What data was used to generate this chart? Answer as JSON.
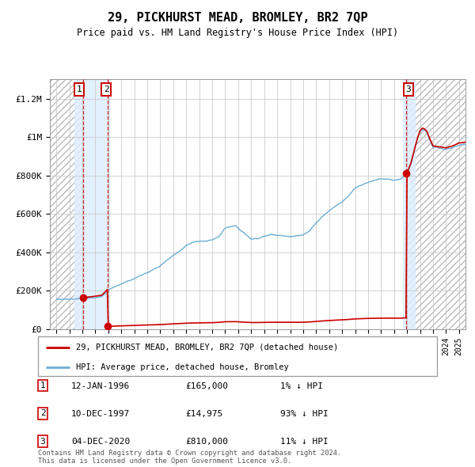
{
  "title": "29, PICKHURST MEAD, BROMLEY, BR2 7QP",
  "subtitle": "Price paid vs. HM Land Registry's House Price Index (HPI)",
  "sale_dates": [
    1996.04,
    1997.94,
    2020.92
  ],
  "sale_prices": [
    165000,
    14975,
    810000
  ],
  "legend_sale_label": "29, PICKHURST MEAD, BROMLEY, BR2 7QP (detached house)",
  "legend_hpi_label": "HPI: Average price, detached house, Bromley",
  "table_entries": [
    {
      "num": "1",
      "date": "12-JAN-1996",
      "price": "£165,000",
      "pct": "1% ↓ HPI"
    },
    {
      "num": "2",
      "date": "10-DEC-1997",
      "price": "£14,975",
      "pct": "93% ↓ HPI"
    },
    {
      "num": "3",
      "date": "04-DEC-2020",
      "price": "£810,000",
      "pct": "11% ↓ HPI"
    }
  ],
  "footer": "Contains HM Land Registry data © Crown copyright and database right 2024.\nThis data is licensed under the Open Government Licence v3.0.",
  "ylim": [
    0,
    1300000
  ],
  "xlim_start": 1993.5,
  "xlim_end": 2025.5,
  "yticks": [
    0,
    200000,
    400000,
    600000,
    800000,
    1000000,
    1200000
  ],
  "ytick_labels": [
    "£0",
    "£200K",
    "£400K",
    "£600K",
    "£800K",
    "£1M",
    "£1.2M"
  ],
  "hpi_color": "#6baed6",
  "sale_color": "#cc0000",
  "highlight_color": "#ddeeff",
  "hpi_anchors": [
    [
      1994.0,
      155000
    ],
    [
      1994.5,
      157000
    ],
    [
      1995.0,
      158000
    ],
    [
      1995.5,
      160000
    ],
    [
      1996.0,
      163000
    ],
    [
      1996.5,
      166000
    ],
    [
      1997.0,
      170000
    ],
    [
      1997.5,
      175000
    ],
    [
      1998.0,
      210000
    ],
    [
      1998.5,
      225000
    ],
    [
      1999.0,
      240000
    ],
    [
      1999.5,
      258000
    ],
    [
      2000.0,
      270000
    ],
    [
      2000.5,
      285000
    ],
    [
      2001.0,
      300000
    ],
    [
      2001.5,
      315000
    ],
    [
      2002.0,
      330000
    ],
    [
      2002.5,
      360000
    ],
    [
      2003.0,
      385000
    ],
    [
      2003.5,
      405000
    ],
    [
      2004.0,
      435000
    ],
    [
      2004.5,
      450000
    ],
    [
      2005.0,
      455000
    ],
    [
      2005.5,
      460000
    ],
    [
      2006.0,
      470000
    ],
    [
      2006.5,
      490000
    ],
    [
      2007.0,
      535000
    ],
    [
      2007.5,
      540000
    ],
    [
      2007.8,
      545000
    ],
    [
      2008.0,
      530000
    ],
    [
      2008.5,
      505000
    ],
    [
      2009.0,
      475000
    ],
    [
      2009.5,
      478000
    ],
    [
      2010.0,
      490000
    ],
    [
      2010.5,
      500000
    ],
    [
      2011.0,
      498000
    ],
    [
      2011.5,
      495000
    ],
    [
      2012.0,
      492000
    ],
    [
      2012.5,
      495000
    ],
    [
      2013.0,
      500000
    ],
    [
      2013.5,
      520000
    ],
    [
      2014.0,
      560000
    ],
    [
      2014.5,
      595000
    ],
    [
      2015.0,
      625000
    ],
    [
      2015.5,
      650000
    ],
    [
      2016.0,
      670000
    ],
    [
      2016.5,
      700000
    ],
    [
      2017.0,
      740000
    ],
    [
      2017.5,
      760000
    ],
    [
      2018.0,
      775000
    ],
    [
      2018.5,
      785000
    ],
    [
      2019.0,
      790000
    ],
    [
      2019.5,
      788000
    ],
    [
      2020.0,
      785000
    ],
    [
      2020.5,
      790000
    ],
    [
      2021.0,
      820000
    ],
    [
      2021.3,
      870000
    ],
    [
      2021.6,
      950000
    ],
    [
      2021.8,
      1000000
    ],
    [
      2022.0,
      1040000
    ],
    [
      2022.2,
      1055000
    ],
    [
      2022.5,
      1040000
    ],
    [
      2022.8,
      990000
    ],
    [
      2023.0,
      960000
    ],
    [
      2023.5,
      955000
    ],
    [
      2024.0,
      950000
    ],
    [
      2024.5,
      960000
    ],
    [
      2025.0,
      975000
    ],
    [
      2025.5,
      980000
    ]
  ]
}
